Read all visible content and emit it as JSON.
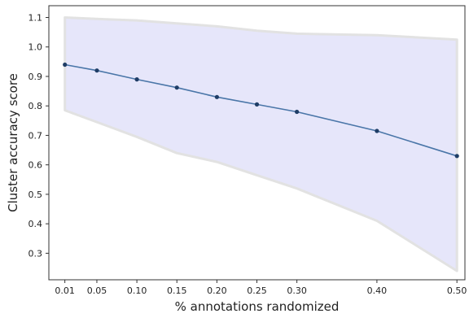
{
  "chart_data": {
    "type": "line",
    "title": "",
    "xlabel": "% annotations randomized",
    "ylabel": "Cluster accuracy score",
    "x": [
      0.01,
      0.05,
      0.1,
      0.15,
      0.2,
      0.25,
      0.3,
      0.4,
      0.5
    ],
    "x_tick_labels": [
      "0.01",
      "0.05",
      "0.10",
      "0.15",
      "0.20",
      "0.25",
      "0.30",
      "0.40",
      "0.50"
    ],
    "y_ticks": [
      0.3,
      0.4,
      0.5,
      0.6,
      0.7,
      0.8,
      0.9,
      1.0,
      1.1
    ],
    "y_tick_labels": [
      "0.3",
      "0.4",
      "0.5",
      "0.6",
      "0.7",
      "0.8",
      "0.9",
      "1.0",
      "1.1"
    ],
    "xlim": [
      -0.01,
      0.51
    ],
    "ylim": [
      0.21,
      1.14
    ],
    "grid": false,
    "series": [
      {
        "values": [
          0.94,
          0.92,
          0.89,
          0.862,
          0.83,
          0.805,
          0.78,
          0.715,
          0.63
        ],
        "upper": [
          1.1,
          1.095,
          1.09,
          1.08,
          1.07,
          1.055,
          1.045,
          1.04,
          1.025
        ],
        "lower": [
          0.785,
          0.745,
          0.695,
          0.64,
          0.61,
          0.565,
          0.52,
          0.41,
          0.24
        ],
        "line_color": "#4a76a8",
        "marker_color": "#1f3d66",
        "band_color": "#e6e6fa",
        "band_edge_color": "#e2e2e2"
      }
    ]
  }
}
